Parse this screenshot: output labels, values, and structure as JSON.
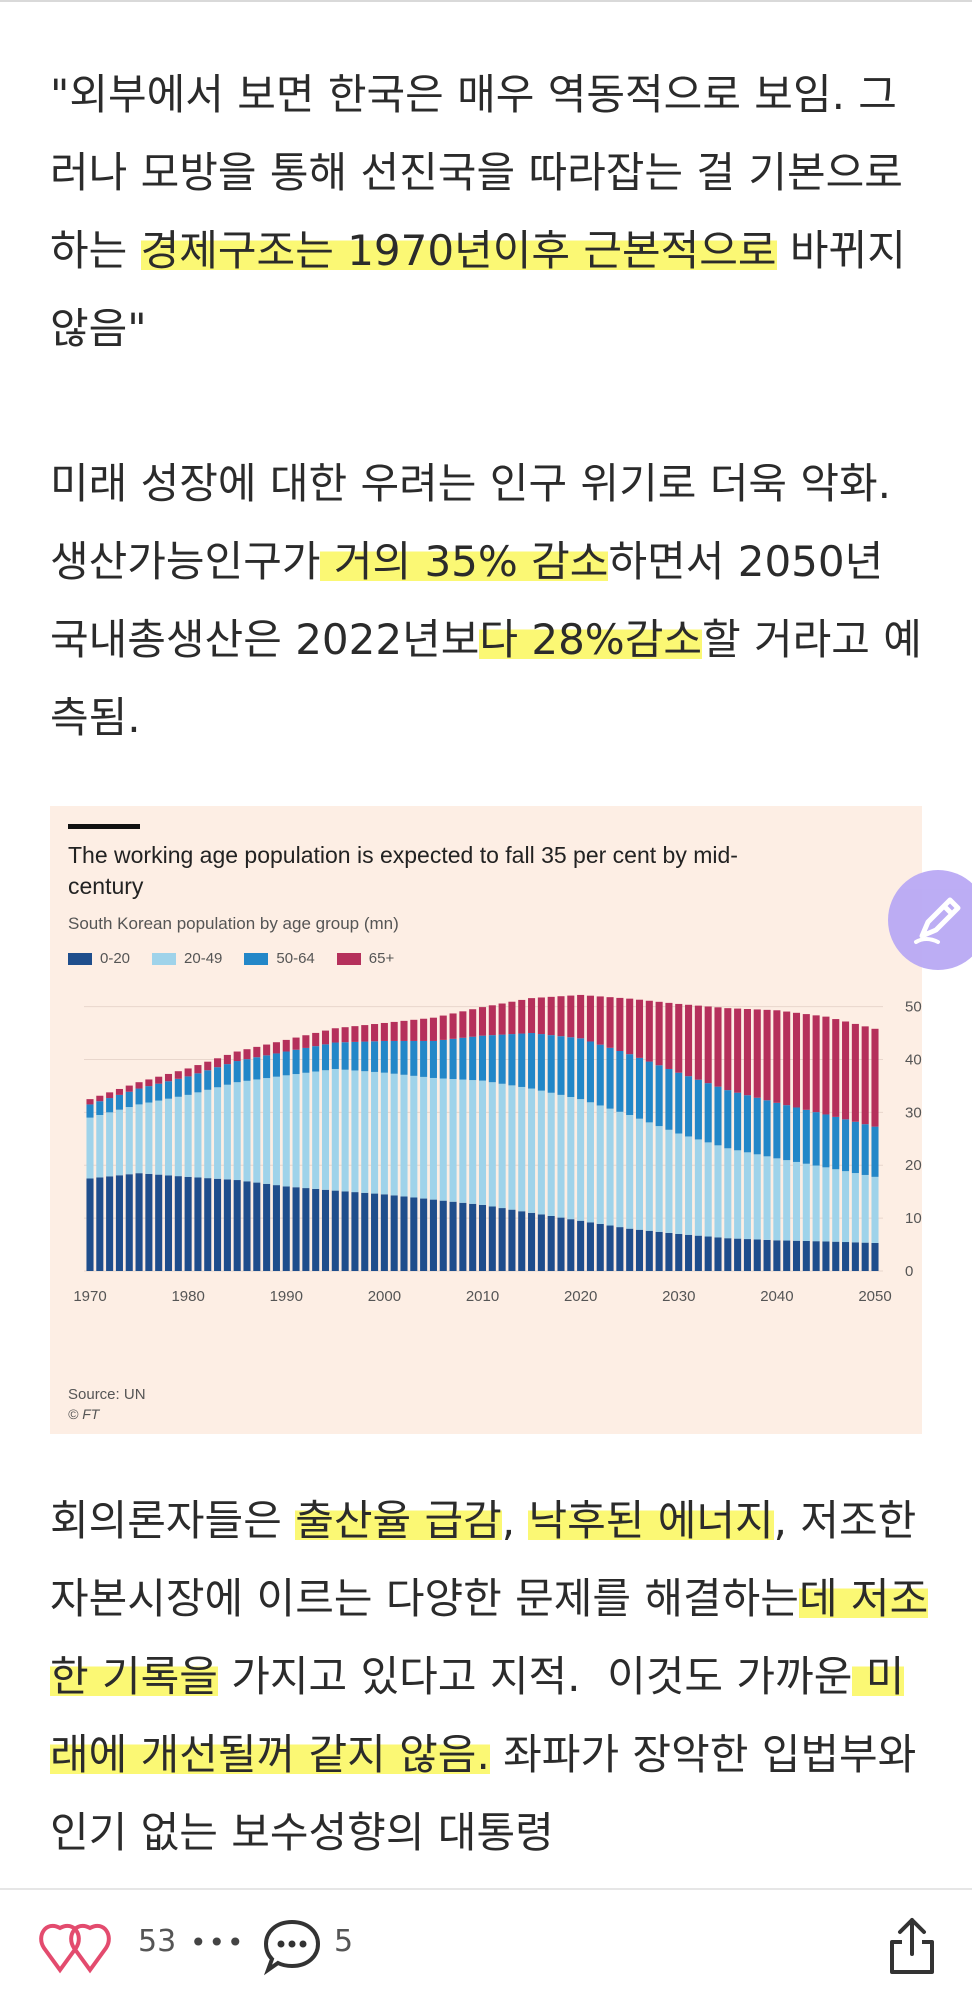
{
  "article": {
    "p1_a": "\"외부에서 보면 한국은 매우 역동적으로 보임. 그러나 모방을 통해 선진국을 따라잡는 걸 기본으로 하는 ",
    "p1_hl": "경제구조는 1970년이후 근본적으로",
    "p1_b": " 바뀌지 않음\"",
    "p2_a": "미래 성장에 대한 우려는 인구 위기로 더욱 악화. 생산가능인구가",
    "p2_hl1": " 거의 35% 감소",
    "p2_b": "하면서 2050년 국내총생산은 2022년보",
    "p2_hl2": "다 28%감소",
    "p2_c": "할 거라고 예측됨.",
    "p3_a": "회의론자들은 ",
    "p3_hl1": "출산율 급감",
    "p3_b": ", ",
    "p3_hl2": "낙후된 에너지",
    "p3_c": ", 저조한 자본시장에 이르는 다양한 문제를 해결하는",
    "p3_hl3": "데 저조한 기록을",
    "p3_d": " 가지고 있다고 지적.  이것도 가까운",
    "p3_hl4": " 미래에 개선될꺼 같지 않음.",
    "p3_e": " 좌파가 장악한 입법부와 인기 없는 보수성향의 대통령"
  },
  "chart_data": {
    "type": "bar",
    "stacked": true,
    "title": "The working age population is expected to fall 35 per cent by mid-century",
    "subtitle": "South Korean population by age group (mn)",
    "source": "Source: UN",
    "copyright": "© FT",
    "x_start": 1970,
    "x_end": 2050,
    "x_ticks": [
      "1970",
      "1980",
      "1990",
      "2000",
      "2010",
      "2020",
      "2030",
      "2040",
      "2050"
    ],
    "y_ticks": [
      "0",
      "10",
      "20",
      "30",
      "40",
      "50"
    ],
    "ylim": [
      0,
      52
    ],
    "legend_position": "top-left",
    "colors": {
      "0-20": "#1f4e8c",
      "20-49": "#9fd3ea",
      "50-64": "#2387c8",
      "65+": "#b5305b"
    },
    "series": [
      {
        "name": "0-20",
        "keyframes": [
          [
            1970,
            17.5
          ],
          [
            1975,
            18.5
          ],
          [
            1980,
            17.8
          ],
          [
            1985,
            17.2
          ],
          [
            1990,
            16.0
          ],
          [
            1995,
            15.2
          ],
          [
            2000,
            14.5
          ],
          [
            2005,
            13.5
          ],
          [
            2010,
            12.5
          ],
          [
            2015,
            11.0
          ],
          [
            2020,
            9.5
          ],
          [
            2025,
            8.0
          ],
          [
            2030,
            7.0
          ],
          [
            2035,
            6.2
          ],
          [
            2040,
            5.8
          ],
          [
            2045,
            5.6
          ],
          [
            2050,
            5.3
          ]
        ]
      },
      {
        "name": "20-49",
        "keyframes": [
          [
            1970,
            11.5
          ],
          [
            1975,
            13.0
          ],
          [
            1980,
            15.5
          ],
          [
            1985,
            18.5
          ],
          [
            1990,
            21.0
          ],
          [
            1995,
            23.0
          ],
          [
            2000,
            23.0
          ],
          [
            2005,
            23.0
          ],
          [
            2010,
            23.5
          ],
          [
            2015,
            23.5
          ],
          [
            2020,
            23.0
          ],
          [
            2025,
            21.5
          ],
          [
            2030,
            19.0
          ],
          [
            2035,
            17.0
          ],
          [
            2040,
            15.5
          ],
          [
            2045,
            14.0
          ],
          [
            2050,
            12.5
          ]
        ]
      },
      {
        "name": "50-64",
        "keyframes": [
          [
            1970,
            2.5
          ],
          [
            1975,
            3.0
          ],
          [
            1980,
            3.5
          ],
          [
            1985,
            4.0
          ],
          [
            1990,
            4.5
          ],
          [
            1995,
            5.0
          ],
          [
            2000,
            6.0
          ],
          [
            2005,
            7.0
          ],
          [
            2010,
            8.5
          ],
          [
            2015,
            10.5
          ],
          [
            2020,
            11.5
          ],
          [
            2025,
            11.5
          ],
          [
            2030,
            11.5
          ],
          [
            2035,
            11.0
          ],
          [
            2040,
            10.5
          ],
          [
            2045,
            10.0
          ],
          [
            2050,
            9.5
          ]
        ]
      },
      {
        "name": "65+",
        "keyframes": [
          [
            1970,
            1.0
          ],
          [
            1975,
            1.2
          ],
          [
            1980,
            1.5
          ],
          [
            1985,
            1.8
          ],
          [
            1990,
            2.2
          ],
          [
            1995,
            2.7
          ],
          [
            2000,
            3.4
          ],
          [
            2005,
            4.4
          ],
          [
            2010,
            5.4
          ],
          [
            2015,
            6.6
          ],
          [
            2020,
            8.2
          ],
          [
            2025,
            10.5
          ],
          [
            2030,
            13.0
          ],
          [
            2035,
            15.5
          ],
          [
            2040,
            17.5
          ],
          [
            2045,
            18.5
          ],
          [
            2050,
            18.5
          ]
        ]
      }
    ]
  },
  "bottom": {
    "likes": "53",
    "more": "•••",
    "comments": "5"
  },
  "icons": {
    "like": "heart-icon",
    "comment": "comment-bubble-icon",
    "share": "share-icon",
    "edit": "pencil-icon"
  }
}
